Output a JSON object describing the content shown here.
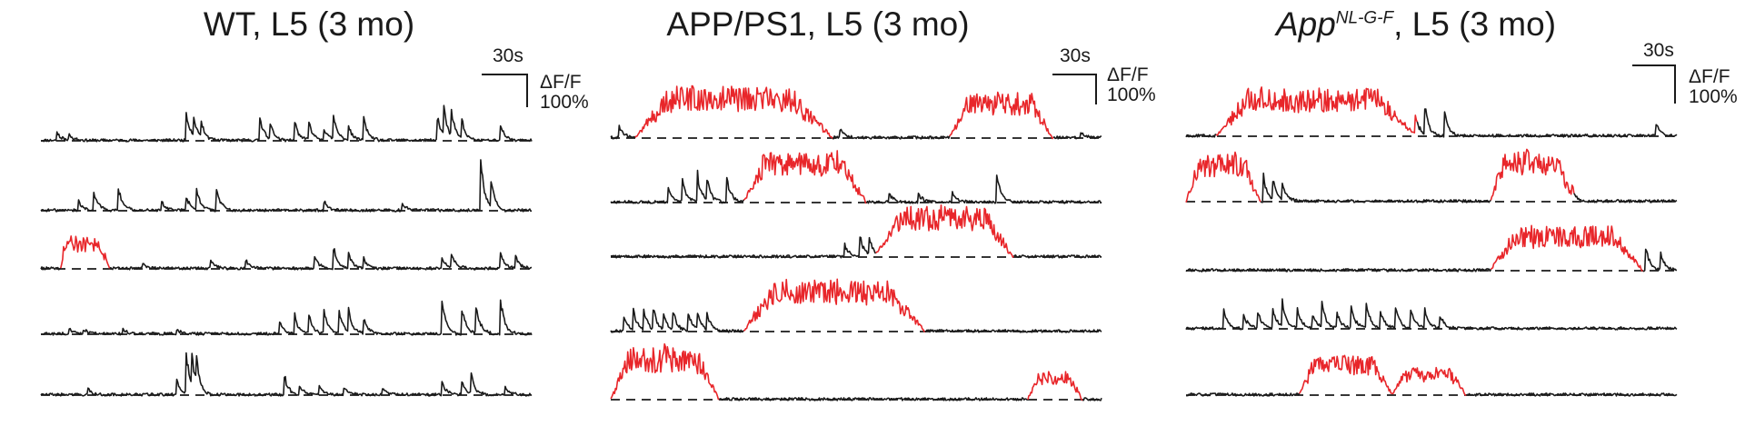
{
  "chart_data": [
    {
      "type": "line",
      "title": "WT, L5 (3 mo)",
      "scale_time": "30s",
      "scale_amp_line1": "ΔF/F",
      "scale_amp_line2": "100%",
      "trace_colors": {
        "normal": "#1a1a1a",
        "event": "#e8262a"
      },
      "traces": [
        {
          "baseline": 1,
          "spikes": [
            [
              0.035,
              0.18
            ],
            [
              0.06,
              0.12
            ],
            [
              0.3,
              0.55
            ],
            [
              0.315,
              0.35
            ],
            [
              0.33,
              0.28
            ],
            [
              0.45,
              0.45
            ],
            [
              0.47,
              0.32
            ],
            [
              0.52,
              0.38
            ],
            [
              0.55,
              0.36
            ],
            [
              0.58,
              0.25
            ],
            [
              0.6,
              0.42
            ],
            [
              0.63,
              0.26
            ],
            [
              0.66,
              0.48
            ],
            [
              0.81,
              0.55
            ],
            [
              0.825,
              0.5
            ],
            [
              0.84,
              0.48
            ],
            [
              0.86,
              0.4
            ],
            [
              0.94,
              0.3
            ]
          ],
          "red": []
        },
        {
          "baseline": 1,
          "spikes": [
            [
              0.08,
              0.2
            ],
            [
              0.11,
              0.45
            ],
            [
              0.16,
              0.55
            ],
            [
              0.25,
              0.15
            ],
            [
              0.3,
              0.25
            ],
            [
              0.32,
              0.4
            ],
            [
              0.36,
              0.5
            ],
            [
              0.58,
              0.18
            ],
            [
              0.74,
              0.12
            ],
            [
              0.9,
              0.9
            ],
            [
              0.92,
              0.6
            ]
          ],
          "red": []
        },
        {
          "baseline": 1,
          "spikes": [
            [
              0.05,
              0.22
            ],
            [
              0.21,
              0.12
            ],
            [
              0.35,
              0.15
            ],
            [
              0.42,
              0.18
            ],
            [
              0.56,
              0.28
            ],
            [
              0.6,
              0.38
            ],
            [
              0.63,
              0.3
            ],
            [
              0.66,
              0.2
            ],
            [
              0.82,
              0.2
            ],
            [
              0.84,
              0.28
            ],
            [
              0.94,
              0.3
            ],
            [
              0.97,
              0.25
            ]
          ],
          "red": [
            [
              0.04,
              0.14,
              0.55
            ]
          ]
        },
        {
          "baseline": 1,
          "spikes": [
            [
              0.06,
              0.12
            ],
            [
              0.09,
              0.1
            ],
            [
              0.17,
              0.1
            ],
            [
              0.28,
              0.1
            ],
            [
              0.49,
              0.25
            ],
            [
              0.52,
              0.4
            ],
            [
              0.55,
              0.35
            ],
            [
              0.58,
              0.45
            ],
            [
              0.61,
              0.55
            ],
            [
              0.63,
              0.45
            ],
            [
              0.66,
              0.35
            ],
            [
              0.82,
              0.65
            ],
            [
              0.86,
              0.6
            ],
            [
              0.89,
              0.55
            ],
            [
              0.94,
              0.65
            ]
          ],
          "red": []
        },
        {
          "baseline": 1,
          "spikes": [
            [
              0.1,
              0.1
            ],
            [
              0.28,
              0.3
            ],
            [
              0.3,
              0.75
            ],
            [
              0.31,
              0.7
            ],
            [
              0.32,
              0.45
            ],
            [
              0.5,
              0.35
            ],
            [
              0.53,
              0.2
            ],
            [
              0.57,
              0.2
            ],
            [
              0.62,
              0.15
            ],
            [
              0.7,
              0.1
            ],
            [
              0.82,
              0.25
            ],
            [
              0.86,
              0.3
            ],
            [
              0.88,
              0.35
            ],
            [
              0.95,
              0.15
            ]
          ],
          "red": []
        }
      ]
    },
    {
      "type": "line",
      "title": "APP/PS1, L5 (3 mo)",
      "scale_time": "30s",
      "scale_amp_line1": "ΔF/F",
      "scale_amp_line2": "100%",
      "trace_colors": {
        "normal": "#1a1a1a",
        "event": "#e8262a"
      },
      "traces": [
        {
          "baseline": 1,
          "spikes": [
            [
              0.02,
              0.25
            ],
            [
              0.47,
              0.18
            ],
            [
              0.96,
              0.12
            ]
          ],
          "red": [
            [
              0.05,
              0.45,
              0.85
            ],
            [
              0.69,
              0.9,
              0.75
            ]
          ]
        },
        {
          "baseline": 1,
          "spikes": [
            [
              0.12,
              0.3
            ],
            [
              0.15,
              0.4
            ],
            [
              0.18,
              0.55
            ],
            [
              0.2,
              0.35
            ],
            [
              0.24,
              0.45
            ],
            [
              0.57,
              0.2
            ],
            [
              0.63,
              0.18
            ],
            [
              0.7,
              0.2
            ],
            [
              0.79,
              0.55
            ]
          ],
          "red": [
            [
              0.27,
              0.52,
              0.85
            ]
          ]
        },
        {
          "baseline": 1,
          "spikes": [
            [
              0.48,
              0.25
            ],
            [
              0.51,
              0.45
            ],
            [
              0.53,
              0.35
            ]
          ],
          "red": [
            [
              0.54,
              0.82,
              0.85
            ]
          ]
        },
        {
          "baseline": 1,
          "spikes": [
            [
              0.03,
              0.3
            ],
            [
              0.05,
              0.35
            ],
            [
              0.07,
              0.4
            ],
            [
              0.09,
              0.45
            ],
            [
              0.11,
              0.35
            ],
            [
              0.13,
              0.4
            ],
            [
              0.16,
              0.45
            ],
            [
              0.18,
              0.35
            ],
            [
              0.2,
              0.3
            ]
          ],
          "red": [
            [
              0.27,
              0.64,
              0.85
            ]
          ]
        },
        {
          "baseline": 1,
          "spikes": [],
          "red": [
            [
              0.0,
              0.22,
              0.9
            ],
            [
              0.85,
              0.96,
              0.45
            ]
          ]
        }
      ]
    },
    {
      "type": "line",
      "title_main": "App",
      "title_sup": "NL-G-F",
      "title_rest": ", L5 (3 mo)",
      "scale_time": "30s",
      "scale_amp_line1": "ΔF/F",
      "scale_amp_line2": "100%",
      "trace_colors": {
        "normal": "#1a1a1a",
        "event": "#e8262a"
      },
      "traces": [
        {
          "baseline": 1,
          "spikes": [
            [
              0.47,
              0.45
            ],
            [
              0.49,
              0.55
            ],
            [
              0.53,
              0.45
            ],
            [
              0.96,
              0.25
            ]
          ],
          "red": [
            [
              0.06,
              0.47,
              0.8
            ]
          ]
        },
        {
          "baseline": 1,
          "spikes": [
            [
              0.16,
              0.55
            ],
            [
              0.18,
              0.4
            ],
            [
              0.2,
              0.3
            ],
            [
              0.79,
              0.25
            ]
          ],
          "red": [
            [
              0.0,
              0.15,
              0.8
            ],
            [
              0.62,
              0.79,
              0.85
            ]
          ]
        },
        {
          "baseline": 1,
          "spikes": [
            [
              0.94,
              0.45
            ],
            [
              0.97,
              0.35
            ]
          ],
          "red": [
            [
              0.62,
              0.93,
              0.75
            ]
          ]
        },
        {
          "baseline": 1,
          "spikes": [
            [
              0.08,
              0.35
            ],
            [
              0.12,
              0.3
            ],
            [
              0.15,
              0.35
            ],
            [
              0.18,
              0.4
            ],
            [
              0.2,
              0.45
            ],
            [
              0.23,
              0.4
            ],
            [
              0.26,
              0.35
            ],
            [
              0.28,
              0.45
            ],
            [
              0.31,
              0.35
            ],
            [
              0.34,
              0.45
            ],
            [
              0.37,
              0.5
            ],
            [
              0.4,
              0.35
            ],
            [
              0.43,
              0.4
            ],
            [
              0.46,
              0.45
            ],
            [
              0.49,
              0.35
            ],
            [
              0.52,
              0.3
            ]
          ],
          "red": []
        },
        {
          "baseline": 1,
          "spikes": [],
          "red": [
            [
              0.23,
              0.42,
              0.65
            ],
            [
              0.42,
              0.57,
              0.45
            ]
          ]
        }
      ]
    }
  ]
}
